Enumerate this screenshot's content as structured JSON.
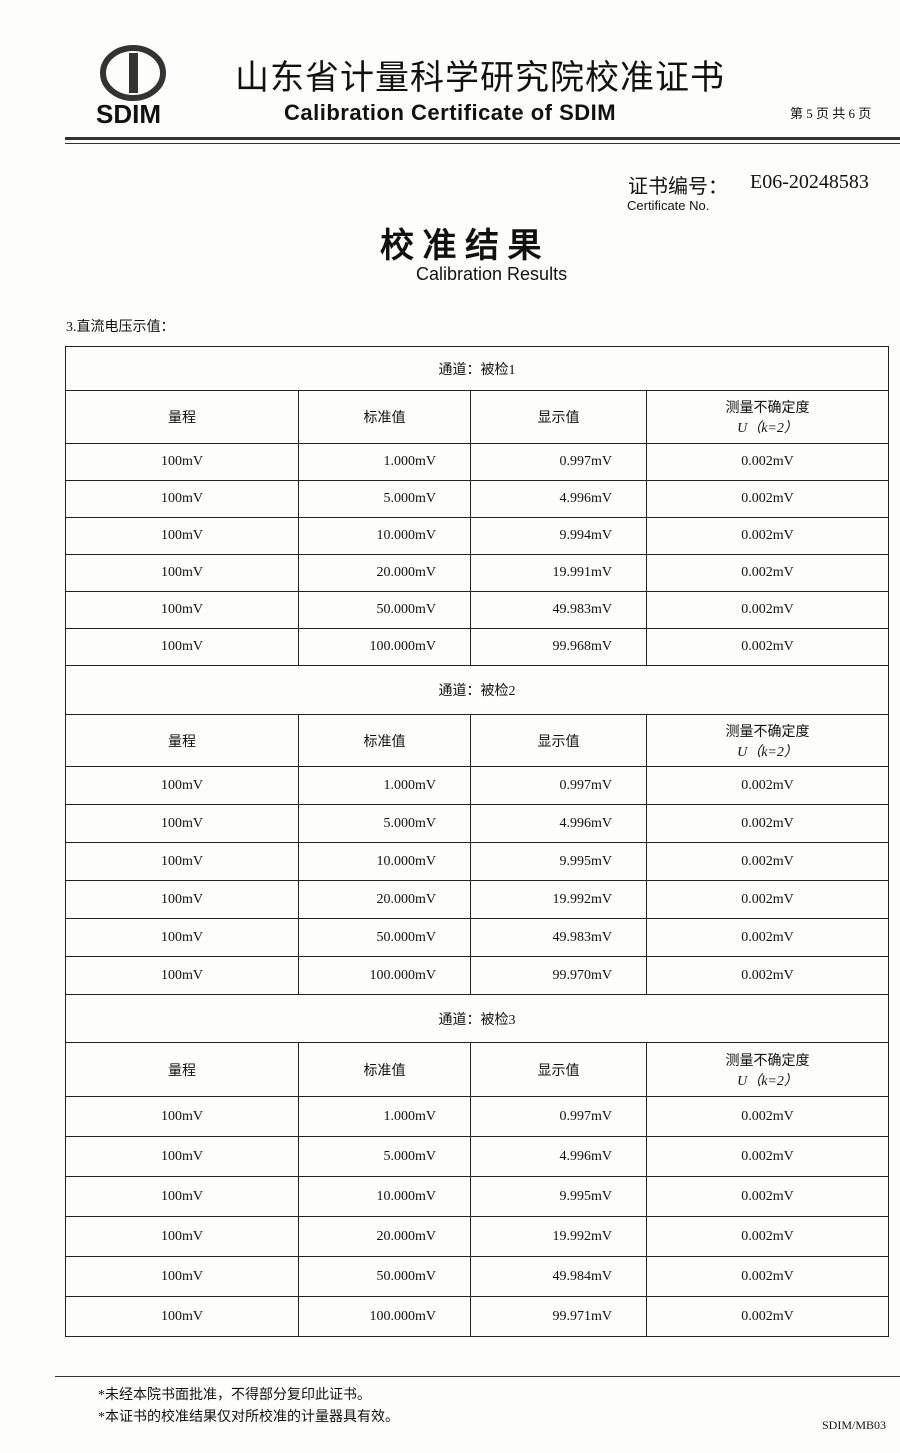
{
  "header": {
    "logo_text": "SDIM",
    "title_cn": "山东省计量科学研究院校准证书",
    "title_en": "Calibration Certificate of SDIM",
    "page": "第 5 页 共 6 页"
  },
  "certificate": {
    "label": "证书编号：",
    "number": "E06-20248583",
    "label_en": "Certificate No."
  },
  "section": {
    "title_cn": "校 准 结 果",
    "title_en": "Calibration Results",
    "item": "3.直流电压示值："
  },
  "tables": [
    {
      "channel": "通道：被检1",
      "headers": [
        "量程",
        "标准值",
        "显示值",
        "测量不确定度",
        "U（k=2）"
      ],
      "rows": [
        [
          "100mV",
          "1.000mV",
          "0.997mV",
          "0.002mV"
        ],
        [
          "100mV",
          "5.000mV",
          "4.996mV",
          "0.002mV"
        ],
        [
          "100mV",
          "10.000mV",
          "9.994mV",
          "0.002mV"
        ],
        [
          "100mV",
          "20.000mV",
          "19.991mV",
          "0.002mV"
        ],
        [
          "100mV",
          "50.000mV",
          "49.983mV",
          "0.002mV"
        ],
        [
          "100mV",
          "100.000mV",
          "99.968mV",
          "0.002mV"
        ]
      ]
    },
    {
      "channel": "通道：被检2",
      "headers": [
        "量程",
        "标准值",
        "显示值",
        "测量不确定度",
        "U（k=2）"
      ],
      "rows": [
        [
          "100mV",
          "1.000mV",
          "0.997mV",
          "0.002mV"
        ],
        [
          "100mV",
          "5.000mV",
          "4.996mV",
          "0.002mV"
        ],
        [
          "100mV",
          "10.000mV",
          "9.995mV",
          "0.002mV"
        ],
        [
          "100mV",
          "20.000mV",
          "19.992mV",
          "0.002mV"
        ],
        [
          "100mV",
          "50.000mV",
          "49.983mV",
          "0.002mV"
        ],
        [
          "100mV",
          "100.000mV",
          "99.970mV",
          "0.002mV"
        ]
      ]
    },
    {
      "channel": "通道：被检3",
      "headers": [
        "量程",
        "标准值",
        "显示值",
        "测量不确定度",
        "U（k=2）"
      ],
      "rows": [
        [
          "100mV",
          "1.000mV",
          "0.997mV",
          "0.002mV"
        ],
        [
          "100mV",
          "5.000mV",
          "4.996mV",
          "0.002mV"
        ],
        [
          "100mV",
          "10.000mV",
          "9.995mV",
          "0.002mV"
        ],
        [
          "100mV",
          "20.000mV",
          "19.992mV",
          "0.002mV"
        ],
        [
          "100mV",
          "50.000mV",
          "49.984mV",
          "0.002mV"
        ],
        [
          "100mV",
          "100.000mV",
          "99.971mV",
          "0.002mV"
        ]
      ]
    }
  ],
  "footer": {
    "notes": [
      "*未经本院书面批准，不得部分复印此证书。",
      "*本证书的校准结果仅对所校准的计量器具有效。"
    ],
    "code": "SDIM/MB03"
  }
}
